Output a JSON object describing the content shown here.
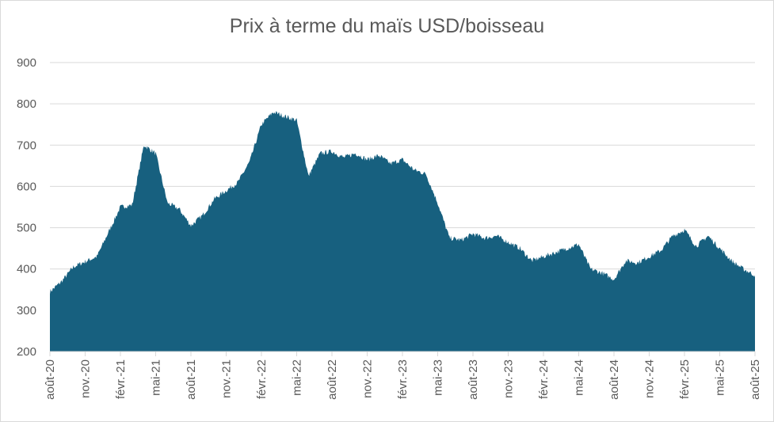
{
  "chart_data": {
    "type": "area",
    "title": "Prix à terme du maïs USD/boisseau",
    "xlabel": "",
    "ylabel": "",
    "ylim": [
      200,
      900
    ],
    "y_ticks": [
      200,
      300,
      400,
      500,
      600,
      700,
      800,
      900
    ],
    "x_tick_labels": [
      "août-20",
      "nov.-20",
      "févr.-21",
      "mai-21",
      "août-21",
      "nov.-21",
      "févr.-22",
      "mai-22",
      "août-22",
      "nov.-22",
      "févr.-23",
      "mai-23",
      "août-23",
      "nov.-23",
      "févr.-24",
      "mai-24",
      "août-24",
      "nov.-24",
      "févr.-25",
      "mai-25",
      "août-25"
    ],
    "grid": true,
    "legend": "none",
    "colors": {
      "area": "#17607f",
      "grid": "#d9d9d9",
      "text": "#595959"
    },
    "x": [
      "2020-08",
      "2020-09",
      "2020-10",
      "2020-11",
      "2020-12",
      "2021-01",
      "2021-02",
      "2021-03",
      "2021-04",
      "2021-05",
      "2021-06",
      "2021-07",
      "2021-08",
      "2021-09",
      "2021-10",
      "2021-11",
      "2021-12",
      "2022-01",
      "2022-02",
      "2022-03",
      "2022-04",
      "2022-05",
      "2022-06",
      "2022-07",
      "2022-08",
      "2022-09",
      "2022-10",
      "2022-11",
      "2022-12",
      "2023-01",
      "2023-02",
      "2023-03",
      "2023-04",
      "2023-05",
      "2023-06",
      "2023-07",
      "2023-08",
      "2023-09",
      "2023-10",
      "2023-11",
      "2023-12",
      "2024-01",
      "2024-02",
      "2024-03",
      "2024-04",
      "2024-05",
      "2024-06",
      "2024-07",
      "2024-08",
      "2024-09",
      "2024-10",
      "2024-11",
      "2024-12",
      "2025-01",
      "2025-02",
      "2025-03",
      "2025-04",
      "2025-05",
      "2025-06",
      "2025-07",
      "2025-08"
    ],
    "values": [
      345,
      370,
      405,
      418,
      430,
      490,
      550,
      555,
      700,
      680,
      560,
      545,
      505,
      530,
      570,
      590,
      610,
      660,
      750,
      780,
      770,
      760,
      625,
      680,
      685,
      670,
      680,
      665,
      675,
      655,
      665,
      640,
      630,
      560,
      475,
      470,
      485,
      475,
      480,
      465,
      450,
      420,
      430,
      440,
      450,
      460,
      400,
      390,
      375,
      420,
      415,
      430,
      445,
      480,
      495,
      455,
      480,
      450,
      420,
      400,
      385
    ]
  }
}
